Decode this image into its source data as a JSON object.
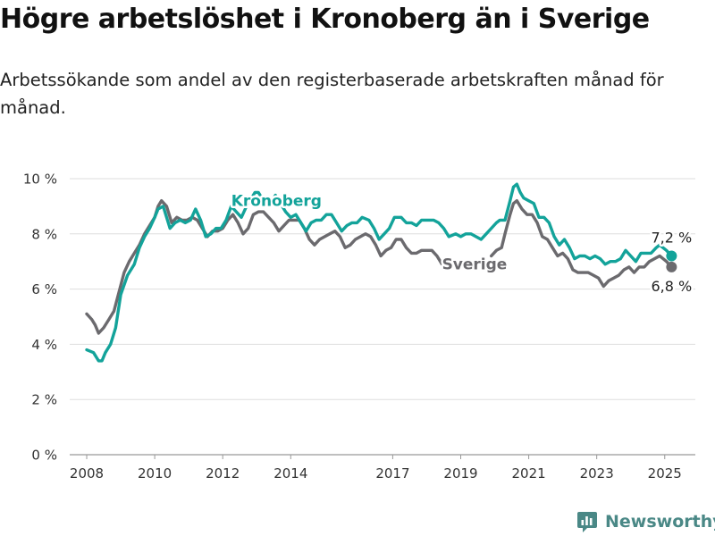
{
  "header": {
    "title": "Högre arbetslöshet i Kronoberg än i Sverige",
    "subtitle": "Arbetssökande som andel av den registerbaserade arbetskraften månad för månad."
  },
  "footer": {
    "brand": "Newsworthy"
  },
  "colors": {
    "kronoberg": "#13a39a",
    "sverige": "#6b6a6e",
    "grid": "#dddddd",
    "brand": "#4a8886"
  },
  "chart_data": {
    "type": "line",
    "title": "Högre arbetslöshet i Kronoberg än i Sverige",
    "subtitle": "Arbetssökande som andel av den registerbaserade arbetskraften månad för månad.",
    "xlabel": "",
    "ylabel": "",
    "x_range": [
      2007.5,
      2025.9
    ],
    "ylim": [
      0,
      10
    ],
    "x_ticks": [
      2008,
      2010,
      2012,
      2014,
      2017,
      2019,
      2021,
      2023,
      2025
    ],
    "x_tick_labels": [
      "2008",
      "2010",
      "2012",
      "2014",
      "2017",
      "2019",
      "2021",
      "2023",
      "2025"
    ],
    "y_ticks": [
      0,
      2,
      4,
      6,
      8,
      10
    ],
    "y_tick_labels": [
      "0 %",
      "2 %",
      "4 %",
      "6 %",
      "8 %",
      "10 %"
    ],
    "grid": true,
    "series": [
      {
        "name": "Kronoberg",
        "color": "#13a39a",
        "end_label": "7,2 %",
        "points": [
          [
            2008.0,
            3.8
          ],
          [
            2008.2,
            3.7
          ],
          [
            2008.35,
            3.4
          ],
          [
            2008.45,
            3.4
          ],
          [
            2008.55,
            3.7
          ],
          [
            2008.7,
            4.0
          ],
          [
            2008.85,
            4.6
          ],
          [
            2009.0,
            5.8
          ],
          [
            2009.2,
            6.5
          ],
          [
            2009.4,
            6.9
          ],
          [
            2009.55,
            7.5
          ],
          [
            2009.7,
            7.9
          ],
          [
            2009.85,
            8.2
          ],
          [
            2010.0,
            8.6
          ],
          [
            2010.1,
            8.9
          ],
          [
            2010.25,
            9.0
          ],
          [
            2010.45,
            8.2
          ],
          [
            2010.6,
            8.4
          ],
          [
            2010.75,
            8.5
          ],
          [
            2010.9,
            8.4
          ],
          [
            2011.05,
            8.5
          ],
          [
            2011.2,
            8.9
          ],
          [
            2011.35,
            8.5
          ],
          [
            2011.5,
            7.9
          ],
          [
            2011.65,
            8.0
          ],
          [
            2011.8,
            8.2
          ],
          [
            2011.95,
            8.2
          ],
          [
            2012.1,
            8.5
          ],
          [
            2012.25,
            9.0
          ],
          [
            2012.4,
            8.8
          ],
          [
            2012.55,
            8.6
          ],
          [
            2012.7,
            9.0
          ],
          [
            2012.85,
            9.3
          ],
          [
            2012.95,
            9.5
          ],
          [
            2013.05,
            9.5
          ],
          [
            2013.15,
            9.3
          ],
          [
            2013.3,
            9.1
          ],
          [
            2013.45,
            9.2
          ],
          [
            2013.55,
            9.4
          ],
          [
            2013.7,
            9.1
          ],
          [
            2013.85,
            8.8
          ],
          [
            2014.0,
            8.6
          ],
          [
            2014.15,
            8.7
          ],
          [
            2014.3,
            8.4
          ],
          [
            2014.45,
            8.1
          ],
          [
            2014.6,
            8.4
          ],
          [
            2014.75,
            8.5
          ],
          [
            2014.9,
            8.5
          ],
          [
            2015.05,
            8.7
          ],
          [
            2015.2,
            8.7
          ],
          [
            2015.35,
            8.4
          ],
          [
            2015.5,
            8.1
          ],
          [
            2015.65,
            8.3
          ],
          [
            2015.8,
            8.4
          ],
          [
            2015.95,
            8.4
          ],
          [
            2016.1,
            8.6
          ],
          [
            2016.3,
            8.5
          ],
          [
            2016.45,
            8.2
          ],
          [
            2016.6,
            7.8
          ],
          [
            2016.75,
            8.0
          ],
          [
            2016.9,
            8.2
          ],
          [
            2017.05,
            8.6
          ],
          [
            2017.25,
            8.6
          ],
          [
            2017.4,
            8.4
          ],
          [
            2017.55,
            8.4
          ],
          [
            2017.7,
            8.3
          ],
          [
            2017.85,
            8.5
          ],
          [
            2018.0,
            8.5
          ],
          [
            2018.2,
            8.5
          ],
          [
            2018.35,
            8.4
          ],
          [
            2018.5,
            8.2
          ],
          [
            2018.65,
            7.9
          ],
          [
            2018.85,
            8.0
          ],
          [
            2019.0,
            7.9
          ],
          [
            2019.15,
            8.0
          ],
          [
            2019.3,
            8.0
          ],
          [
            2019.45,
            7.9
          ],
          [
            2019.6,
            7.8
          ],
          [
            2019.75,
            8.0
          ],
          [
            2019.9,
            8.2
          ],
          [
            2020.05,
            8.4
          ],
          [
            2020.15,
            8.5
          ],
          [
            2020.3,
            8.5
          ],
          [
            2020.45,
            9.2
          ],
          [
            2020.55,
            9.7
          ],
          [
            2020.65,
            9.8
          ],
          [
            2020.75,
            9.5
          ],
          [
            2020.85,
            9.3
          ],
          [
            2021.0,
            9.2
          ],
          [
            2021.15,
            9.1
          ],
          [
            2021.3,
            8.6
          ],
          [
            2021.45,
            8.6
          ],
          [
            2021.6,
            8.4
          ],
          [
            2021.75,
            7.9
          ],
          [
            2021.9,
            7.6
          ],
          [
            2022.05,
            7.8
          ],
          [
            2022.2,
            7.5
          ],
          [
            2022.35,
            7.1
          ],
          [
            2022.5,
            7.2
          ],
          [
            2022.65,
            7.2
          ],
          [
            2022.8,
            7.1
          ],
          [
            2022.95,
            7.2
          ],
          [
            2023.1,
            7.1
          ],
          [
            2023.25,
            6.9
          ],
          [
            2023.4,
            7.0
          ],
          [
            2023.55,
            7.0
          ],
          [
            2023.7,
            7.1
          ],
          [
            2023.85,
            7.4
          ],
          [
            2024.0,
            7.2
          ],
          [
            2024.15,
            7.0
          ],
          [
            2024.3,
            7.3
          ],
          [
            2024.45,
            7.3
          ],
          [
            2024.6,
            7.3
          ],
          [
            2024.75,
            7.5
          ],
          [
            2024.85,
            7.6
          ],
          [
            2024.95,
            7.5
          ],
          [
            2025.05,
            7.4
          ],
          [
            2025.2,
            7.2
          ]
        ]
      },
      {
        "name": "Sverige",
        "color": "#6b6a6e",
        "end_label": "6,8 %",
        "points": [
          [
            2008.0,
            5.1
          ],
          [
            2008.15,
            4.9
          ],
          [
            2008.25,
            4.7
          ],
          [
            2008.35,
            4.4
          ],
          [
            2008.5,
            4.6
          ],
          [
            2008.65,
            4.9
          ],
          [
            2008.8,
            5.2
          ],
          [
            2008.95,
            5.9
          ],
          [
            2009.1,
            6.6
          ],
          [
            2009.25,
            7.0
          ],
          [
            2009.4,
            7.3
          ],
          [
            2009.55,
            7.6
          ],
          [
            2009.7,
            8.0
          ],
          [
            2009.85,
            8.3
          ],
          [
            2010.0,
            8.6
          ],
          [
            2010.1,
            9.0
          ],
          [
            2010.2,
            9.2
          ],
          [
            2010.35,
            9.0
          ],
          [
            2010.5,
            8.4
          ],
          [
            2010.65,
            8.6
          ],
          [
            2010.8,
            8.5
          ],
          [
            2010.95,
            8.5
          ],
          [
            2011.1,
            8.6
          ],
          [
            2011.25,
            8.5
          ],
          [
            2011.4,
            8.2
          ],
          [
            2011.55,
            7.9
          ],
          [
            2011.7,
            8.1
          ],
          [
            2011.85,
            8.1
          ],
          [
            2012.0,
            8.2
          ],
          [
            2012.15,
            8.5
          ],
          [
            2012.3,
            8.7
          ],
          [
            2012.45,
            8.4
          ],
          [
            2012.6,
            8.0
          ],
          [
            2012.75,
            8.2
          ],
          [
            2012.9,
            8.7
          ],
          [
            2013.05,
            8.8
          ],
          [
            2013.2,
            8.8
          ],
          [
            2013.35,
            8.6
          ],
          [
            2013.5,
            8.4
          ],
          [
            2013.65,
            8.1
          ],
          [
            2013.8,
            8.3
          ],
          [
            2013.95,
            8.5
          ],
          [
            2014.1,
            8.5
          ],
          [
            2014.25,
            8.5
          ],
          [
            2014.4,
            8.2
          ],
          [
            2014.55,
            7.8
          ],
          [
            2014.7,
            7.6
          ],
          [
            2014.85,
            7.8
          ],
          [
            2015.0,
            7.9
          ],
          [
            2015.15,
            8.0
          ],
          [
            2015.3,
            8.1
          ],
          [
            2015.45,
            7.9
          ],
          [
            2015.6,
            7.5
          ],
          [
            2015.75,
            7.6
          ],
          [
            2015.9,
            7.8
          ],
          [
            2016.05,
            7.9
          ],
          [
            2016.2,
            8.0
          ],
          [
            2016.35,
            7.9
          ],
          [
            2016.5,
            7.6
          ],
          [
            2016.65,
            7.2
          ],
          [
            2016.8,
            7.4
          ],
          [
            2016.95,
            7.5
          ],
          [
            2017.1,
            7.8
          ],
          [
            2017.25,
            7.8
          ],
          [
            2017.4,
            7.5
          ],
          [
            2017.55,
            7.3
          ],
          [
            2017.7,
            7.3
          ],
          [
            2017.85,
            7.4
          ],
          [
            2018.0,
            7.4
          ],
          [
            2018.15,
            7.4
          ],
          [
            2018.3,
            7.2
          ],
          [
            2018.45,
            6.9
          ],
          [
            2018.55,
            6.8
          ],
          [
            2019.9,
            7.2
          ],
          [
            2020.05,
            7.4
          ],
          [
            2020.2,
            7.5
          ],
          [
            2020.3,
            8.0
          ],
          [
            2020.45,
            8.7
          ],
          [
            2020.55,
            9.1
          ],
          [
            2020.65,
            9.2
          ],
          [
            2020.8,
            8.9
          ],
          [
            2020.95,
            8.7
          ],
          [
            2021.1,
            8.7
          ],
          [
            2021.25,
            8.4
          ],
          [
            2021.4,
            7.9
          ],
          [
            2021.55,
            7.8
          ],
          [
            2021.7,
            7.5
          ],
          [
            2021.85,
            7.2
          ],
          [
            2022.0,
            7.3
          ],
          [
            2022.15,
            7.1
          ],
          [
            2022.3,
            6.7
          ],
          [
            2022.45,
            6.6
          ],
          [
            2022.6,
            6.6
          ],
          [
            2022.75,
            6.6
          ],
          [
            2022.9,
            6.5
          ],
          [
            2023.05,
            6.4
          ],
          [
            2023.2,
            6.1
          ],
          [
            2023.35,
            6.3
          ],
          [
            2023.5,
            6.4
          ],
          [
            2023.65,
            6.5
          ],
          [
            2023.8,
            6.7
          ],
          [
            2023.95,
            6.8
          ],
          [
            2024.1,
            6.6
          ],
          [
            2024.25,
            6.8
          ],
          [
            2024.4,
            6.8
          ],
          [
            2024.55,
            7.0
          ],
          [
            2024.7,
            7.1
          ],
          [
            2024.85,
            7.2
          ],
          [
            2024.95,
            7.1
          ],
          [
            2025.05,
            7.0
          ],
          [
            2025.2,
            6.8
          ]
        ]
      }
    ]
  }
}
